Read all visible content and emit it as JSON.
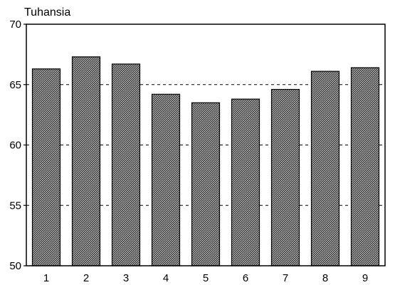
{
  "chart_data": {
    "type": "bar",
    "title": "",
    "unit_label": "Tuhansia",
    "xlabel": "",
    "ylabel": "",
    "categories": [
      "1",
      "2",
      "3",
      "4",
      "5",
      "6",
      "7",
      "8",
      "9"
    ],
    "values": [
      66.3,
      67.3,
      66.7,
      64.2,
      63.5,
      63.8,
      64.6,
      66.1,
      66.4
    ],
    "ylim": [
      50,
      70
    ],
    "yticks": [
      50,
      55,
      60,
      65,
      70
    ],
    "grid": "horizontal-dashed",
    "legend": "none",
    "colors": {
      "bar_fill": "#7a7a7a",
      "bar_outline": "#000000",
      "axis": "#000000",
      "grid": "#000000",
      "background": "#ffffff"
    }
  }
}
